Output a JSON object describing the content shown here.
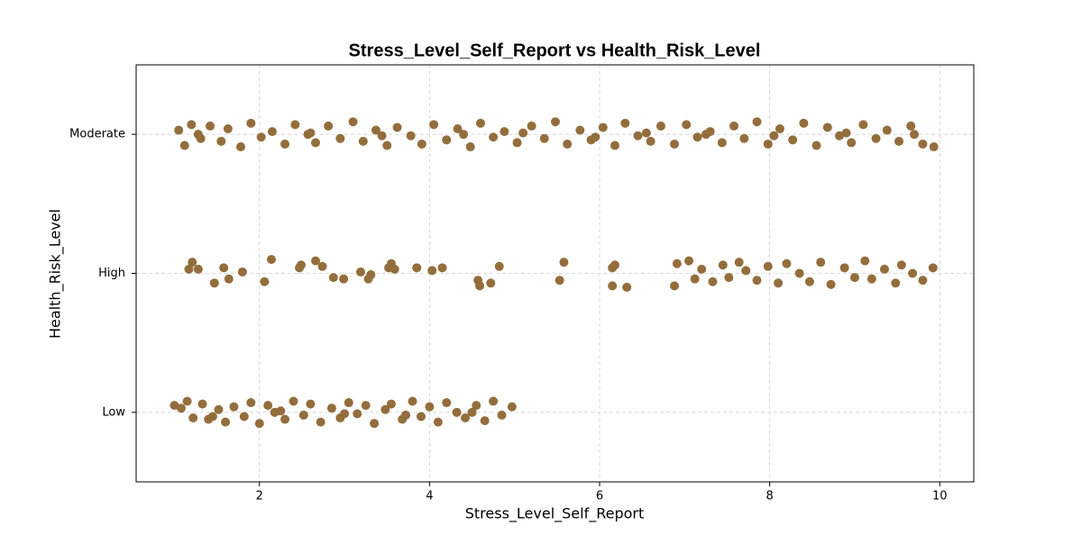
{
  "chart_data": {
    "type": "scatter",
    "title": "Stress_Level_Self_Report vs Health_Risk_Level",
    "x_label": "Stress_Level_Self_Report",
    "y_label": "Health_Risk_Level",
    "xlim": [
      0.55,
      10.4
    ],
    "ylim": [
      -0.5,
      2.5
    ],
    "xticks": [
      2,
      4,
      6,
      8,
      10
    ],
    "yticks": [
      {
        "value": 0,
        "label": "Low"
      },
      {
        "value": 1,
        "label": "High"
      },
      {
        "value": 2,
        "label": "Moderate"
      }
    ],
    "grid": true,
    "series": [
      {
        "color": "#936e3c",
        "x": [
          1.05,
          1.12,
          1.2,
          1.31,
          1.42,
          1.55,
          1.63,
          1.78,
          1.9,
          2.02,
          2.15,
          2.3,
          2.42,
          2.57,
          2.66,
          2.81,
          2.95,
          3.1,
          3.22,
          3.37,
          3.5,
          3.62,
          3.78,
          3.91,
          4.05,
          4.2,
          4.33,
          4.48,
          4.6,
          4.75,
          4.88,
          5.03,
          5.2,
          5.35,
          5.48,
          5.62,
          5.77,
          5.9,
          6.04,
          6.18,
          6.3,
          6.45,
          6.6,
          6.72,
          6.88,
          7.02,
          7.15,
          7.3,
          7.44,
          7.58,
          7.7,
          7.85,
          7.98,
          8.12,
          8.27,
          8.4,
          8.55,
          8.68,
          8.82,
          8.96,
          9.1,
          9.25,
          9.38,
          9.52,
          9.66,
          9.8,
          9.93,
          1.28,
          2.6,
          3.44,
          4.4,
          5.1,
          5.95,
          6.55,
          7.25,
          8.05,
          8.9,
          9.7,
          1.17,
          1.21,
          1.28,
          1.47,
          1.58,
          1.64,
          1.8,
          2.06,
          2.14,
          2.47,
          2.49,
          2.66,
          2.74,
          2.87,
          2.99,
          3.19,
          3.28,
          3.31,
          3.52,
          3.55,
          3.59,
          3.85,
          4.03,
          4.15,
          4.57,
          4.59,
          4.72,
          4.82,
          5.53,
          5.58,
          6.15,
          6.15,
          6.18,
          6.32,
          6.88,
          6.91,
          7.05,
          7.12,
          7.2,
          7.33,
          7.45,
          7.52,
          7.64,
          7.72,
          7.85,
          7.98,
          8.1,
          8.2,
          8.35,
          8.47,
          8.6,
          8.72,
          8.88,
          9.0,
          9.12,
          9.2,
          9.35,
          9.48,
          9.55,
          9.68,
          9.8,
          9.92,
          1.0,
          1.08,
          1.15,
          1.22,
          1.33,
          1.4,
          1.52,
          1.6,
          1.7,
          1.82,
          1.9,
          2.0,
          2.1,
          2.18,
          2.3,
          2.4,
          2.52,
          2.6,
          2.72,
          2.85,
          2.95,
          3.05,
          3.15,
          3.25,
          3.35,
          3.48,
          3.55,
          3.68,
          3.8,
          3.9,
          4.0,
          4.1,
          4.2,
          4.32,
          4.42,
          4.55,
          4.65,
          4.75,
          4.85,
          4.97,
          1.45,
          2.25,
          3.0,
          3.72,
          4.5
        ],
        "y": [
          2.03,
          1.92,
          2.07,
          1.97,
          2.06,
          1.95,
          2.04,
          1.91,
          2.08,
          1.98,
          2.02,
          1.93,
          2.07,
          2.0,
          1.94,
          2.06,
          1.97,
          2.09,
          1.95,
          2.03,
          1.92,
          2.05,
          1.99,
          1.93,
          2.07,
          1.96,
          2.04,
          1.91,
          2.08,
          1.98,
          2.02,
          1.94,
          2.06,
          1.97,
          2.09,
          1.93,
          2.03,
          1.96,
          2.05,
          1.92,
          2.08,
          1.99,
          1.95,
          2.06,
          1.93,
          2.07,
          1.98,
          2.02,
          1.94,
          2.06,
          1.97,
          2.09,
          1.93,
          2.04,
          1.96,
          2.08,
          1.92,
          2.05,
          1.99,
          1.94,
          2.07,
          1.97,
          2.03,
          1.95,
          2.06,
          1.93,
          1.91,
          2.0,
          2.01,
          1.99,
          2.0,
          2.01,
          1.98,
          2.01,
          2.0,
          1.99,
          2.01,
          2.0,
          1.03,
          1.08,
          1.03,
          0.93,
          1.04,
          0.96,
          1.01,
          0.94,
          1.1,
          1.04,
          1.06,
          1.09,
          1.05,
          0.97,
          0.96,
          1.01,
          0.96,
          0.99,
          1.04,
          1.07,
          1.03,
          1.04,
          1.02,
          1.04,
          0.95,
          0.91,
          0.93,
          1.05,
          0.95,
          1.08,
          0.91,
          1.04,
          1.06,
          0.9,
          0.91,
          1.07,
          1.09,
          0.96,
          1.03,
          0.94,
          1.06,
          0.97,
          1.08,
          1.02,
          0.95,
          1.05,
          0.93,
          1.07,
          1.0,
          0.94,
          1.08,
          0.92,
          1.04,
          0.97,
          1.09,
          0.96,
          1.03,
          0.93,
          1.06,
          1.0,
          0.95,
          1.04,
          0.05,
          0.03,
          0.08,
          -0.04,
          0.06,
          -0.05,
          0.02,
          -0.07,
          0.04,
          -0.03,
          0.07,
          -0.08,
          0.05,
          0.0,
          -0.05,
          0.08,
          -0.02,
          0.06,
          -0.07,
          0.03,
          -0.04,
          0.07,
          -0.01,
          0.05,
          -0.08,
          0.02,
          0.06,
          -0.05,
          0.08,
          -0.03,
          0.04,
          -0.07,
          0.07,
          0.0,
          -0.04,
          0.05,
          -0.06,
          0.08,
          -0.02,
          0.04,
          -0.03,
          0.01,
          -0.01,
          -0.02,
          0.0
        ]
      }
    ]
  }
}
